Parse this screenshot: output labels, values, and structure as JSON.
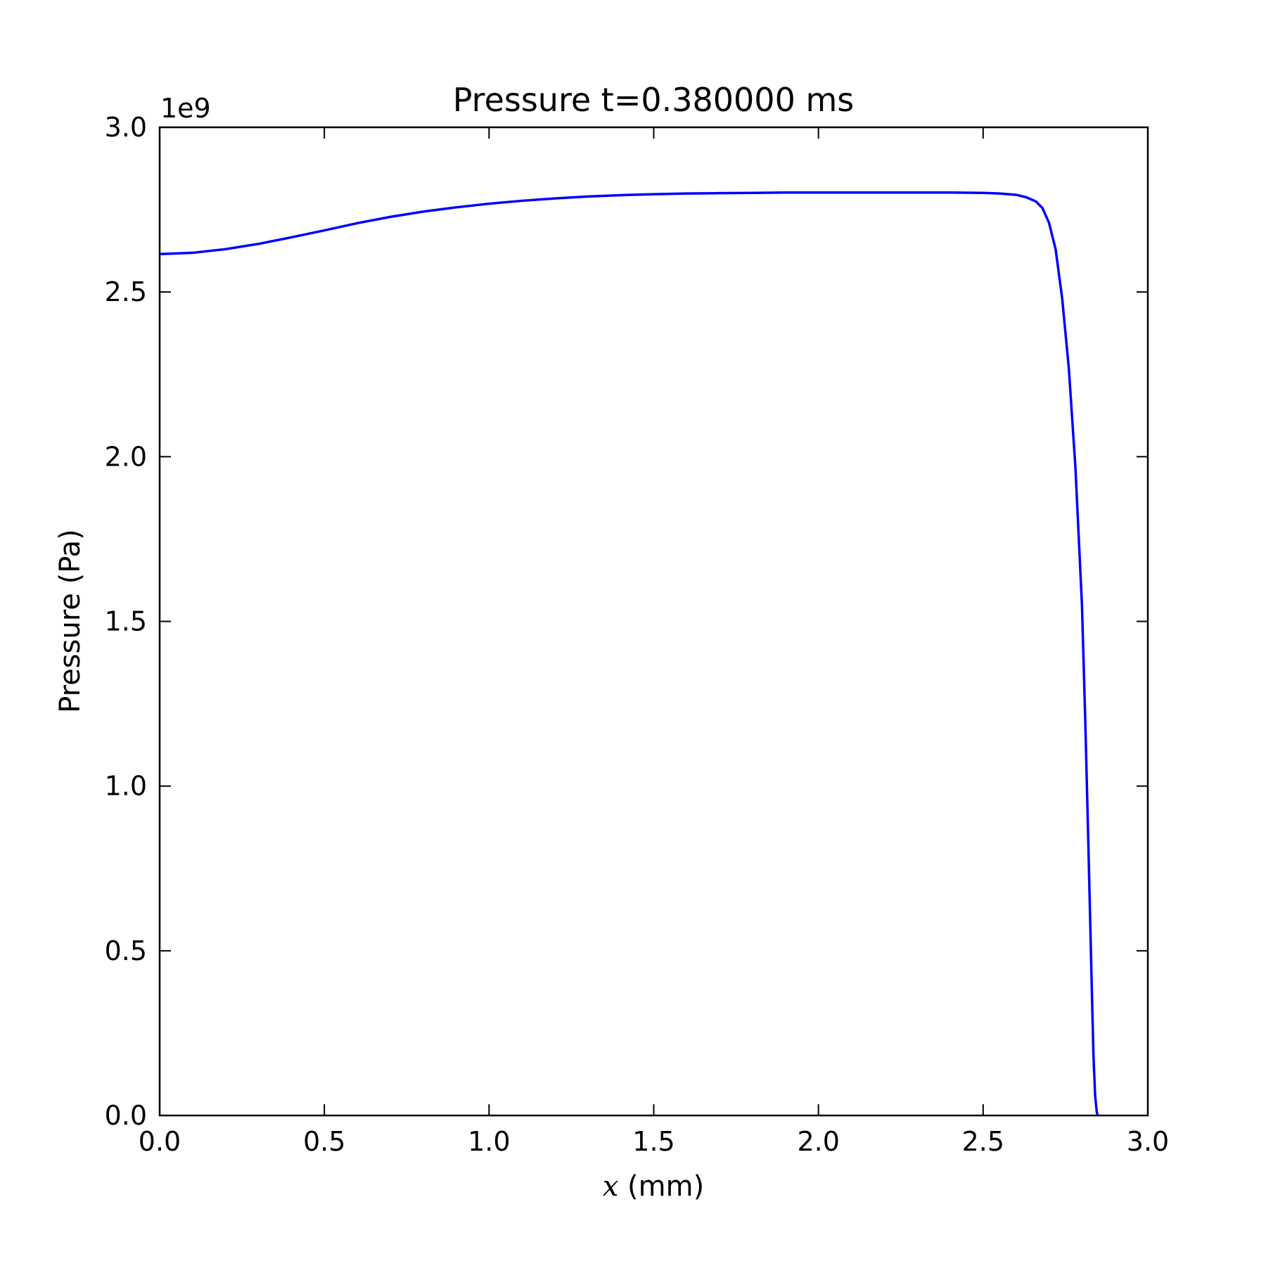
{
  "chart_data": {
    "type": "line",
    "title": "Pressure t=0.380000 ms",
    "xlabel_var": "x",
    "xlabel_unit": " (mm)",
    "ylabel": "Pressure (Pa)",
    "y_offset_text": "1e9",
    "xlim": [
      0.0,
      3.0
    ],
    "ylim": [
      0.0,
      3.0
    ],
    "xticks": [
      0.0,
      0.5,
      1.0,
      1.5,
      2.0,
      2.5,
      3.0
    ],
    "yticks": [
      0.0,
      0.5,
      1.0,
      1.5,
      2.0,
      2.5,
      3.0
    ],
    "xtick_labels": [
      "0.0",
      "0.5",
      "1.0",
      "1.5",
      "2.0",
      "2.5",
      "3.0"
    ],
    "ytick_labels": [
      "0.0",
      "0.5",
      "1.0",
      "1.5",
      "2.0",
      "2.5",
      "3.0"
    ],
    "y_scale_factor": 1000000000,
    "grid": false,
    "series": [
      {
        "color": "#0000ff",
        "x": [
          0.0,
          0.1,
          0.2,
          0.3,
          0.4,
          0.5,
          0.6,
          0.7,
          0.8,
          0.9,
          1.0,
          1.1,
          1.2,
          1.3,
          1.4,
          1.5,
          1.6,
          1.7,
          1.8,
          1.9,
          2.0,
          2.1,
          2.2,
          2.3,
          2.4,
          2.5,
          2.55,
          2.6,
          2.63,
          2.66,
          2.68,
          2.7,
          2.72,
          2.74,
          2.76,
          2.78,
          2.8,
          2.81,
          2.82,
          2.83,
          2.835,
          2.84,
          2.845,
          2.848
        ],
        "y": [
          2.615,
          2.619,
          2.63,
          2.646,
          2.666,
          2.687,
          2.709,
          2.728,
          2.744,
          2.757,
          2.768,
          2.777,
          2.784,
          2.79,
          2.794,
          2.797,
          2.799,
          2.8,
          2.801,
          2.802,
          2.802,
          2.802,
          2.802,
          2.802,
          2.802,
          2.801,
          2.799,
          2.795,
          2.788,
          2.775,
          2.755,
          2.71,
          2.63,
          2.48,
          2.27,
          1.97,
          1.55,
          1.2,
          0.8,
          0.38,
          0.18,
          0.06,
          0.01,
          0.0
        ]
      }
    ]
  },
  "colors": {
    "line": "#0000ff",
    "axes": "#000000",
    "background": "#ffffff"
  }
}
